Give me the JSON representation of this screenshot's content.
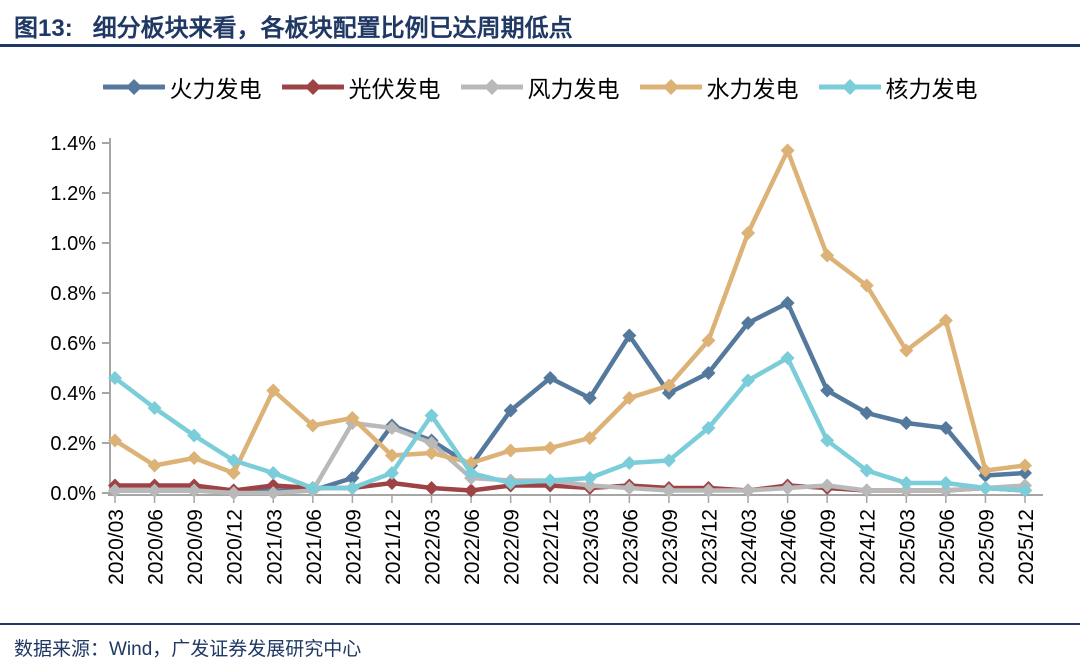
{
  "header": {
    "figure_label": "图13:",
    "title": "细分板块来看，各板块配置比例已达周期低点"
  },
  "footer": {
    "source": "数据来源：Wind，广发证券发展研究中心"
  },
  "colors": {
    "accent_navy": "#1f3864",
    "axis_gray": "#a6a6a6",
    "label_black": "#000000",
    "background": "#ffffff"
  },
  "chart_data": {
    "type": "line",
    "title": "细分板块来看，各板块配置比例已达周期低点",
    "marker": "diamond",
    "grid": false,
    "legend_position": "top",
    "xlabel": "",
    "ylabel": "",
    "ylim": [
      0,
      1.4
    ],
    "ytick_step": 0.2,
    "ytick_suffix": "%",
    "categories": [
      "2020/03",
      "2020/06",
      "2020/09",
      "2020/12",
      "2021/03",
      "2021/06",
      "2021/09",
      "2021/12",
      "2022/03",
      "2022/06",
      "2022/09",
      "2022/12",
      "2023/03",
      "2023/06",
      "2023/09",
      "2023/12",
      "2024/03",
      "2024/06",
      "2024/09",
      "2024/12",
      "2025/03",
      "2025/06",
      "2025/09",
      "2025/12"
    ],
    "series": [
      {
        "key": "thermal-power",
        "name": "火力发电",
        "color": "#54799c",
        "values": [
          0.01,
          0.01,
          0.01,
          0.01,
          0.01,
          0.01,
          0.06,
          0.27,
          0.21,
          0.11,
          0.33,
          0.46,
          0.38,
          0.63,
          0.4,
          0.48,
          0.68,
          0.76,
          0.41,
          0.32,
          0.28,
          0.26,
          0.07,
          0.08
        ]
      },
      {
        "key": "solar-power",
        "name": "光伏发电",
        "color": "#9e4345",
        "values": [
          0.03,
          0.03,
          0.03,
          0.01,
          0.03,
          0.02,
          0.02,
          0.04,
          0.02,
          0.01,
          0.03,
          0.03,
          0.02,
          0.03,
          0.02,
          0.02,
          0.01,
          0.03,
          0.02,
          0.01,
          0.01,
          0.01,
          0.02,
          0.01
        ]
      },
      {
        "key": "wind-power",
        "name": "风力发电",
        "color": "#b9b9b9",
        "values": [
          0.01,
          0.01,
          0.01,
          0.0,
          0.0,
          0.01,
          0.28,
          0.26,
          0.2,
          0.06,
          0.05,
          0.05,
          0.03,
          0.02,
          0.01,
          0.01,
          0.01,
          0.02,
          0.03,
          0.01,
          0.01,
          0.01,
          0.02,
          0.03
        ]
      },
      {
        "key": "hydro-power",
        "name": "水力发电",
        "color": "#dcb276",
        "values": [
          0.21,
          0.11,
          0.14,
          0.08,
          0.41,
          0.27,
          0.3,
          0.15,
          0.16,
          0.12,
          0.17,
          0.18,
          0.22,
          0.38,
          0.43,
          0.61,
          1.04,
          1.37,
          0.95,
          0.83,
          0.57,
          0.69,
          0.09,
          0.11
        ]
      },
      {
        "key": "nuclear-power",
        "name": "核力发电",
        "color": "#7bcdd9",
        "values": [
          0.46,
          0.34,
          0.23,
          0.13,
          0.08,
          0.02,
          0.02,
          0.08,
          0.31,
          0.08,
          0.04,
          0.05,
          0.06,
          0.12,
          0.13,
          0.26,
          0.45,
          0.54,
          0.21,
          0.09,
          0.04,
          0.04,
          0.02,
          0.01
        ]
      }
    ]
  }
}
